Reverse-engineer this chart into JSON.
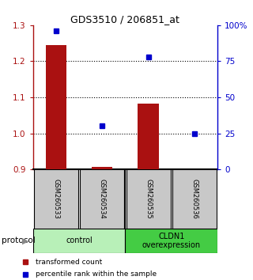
{
  "title": "GDS3510 / 206851_at",
  "samples": [
    "GSM260533",
    "GSM260534",
    "GSM260535",
    "GSM260536"
  ],
  "red_values": [
    1.245,
    0.908,
    1.082,
    0.9
  ],
  "blue_values_pct": [
    96,
    30,
    78,
    25
  ],
  "ylim_left": [
    0.9,
    1.3
  ],
  "ylim_right": [
    0,
    100
  ],
  "yticks_left": [
    0.9,
    1.0,
    1.1,
    1.2,
    1.3
  ],
  "yticks_right": [
    0,
    25,
    50,
    75,
    100
  ],
  "ytick_labels_right": [
    "0",
    "25",
    "50",
    "75",
    "100%"
  ],
  "red_color": "#aa1111",
  "blue_color": "#0000cc",
  "bar_baseline": 0.9,
  "groups": [
    {
      "label": "control",
      "color": "#b8f0b8"
    },
    {
      "label": "CLDN1\noverexpression",
      "color": "#44cc44"
    }
  ],
  "legend_red": "transformed count",
  "legend_blue": "percentile rank within the sample",
  "protocol_label": "protocol",
  "background_color": "#ffffff",
  "sample_box_color": "#c8c8c8",
  "sample_box_edge": "#888888"
}
